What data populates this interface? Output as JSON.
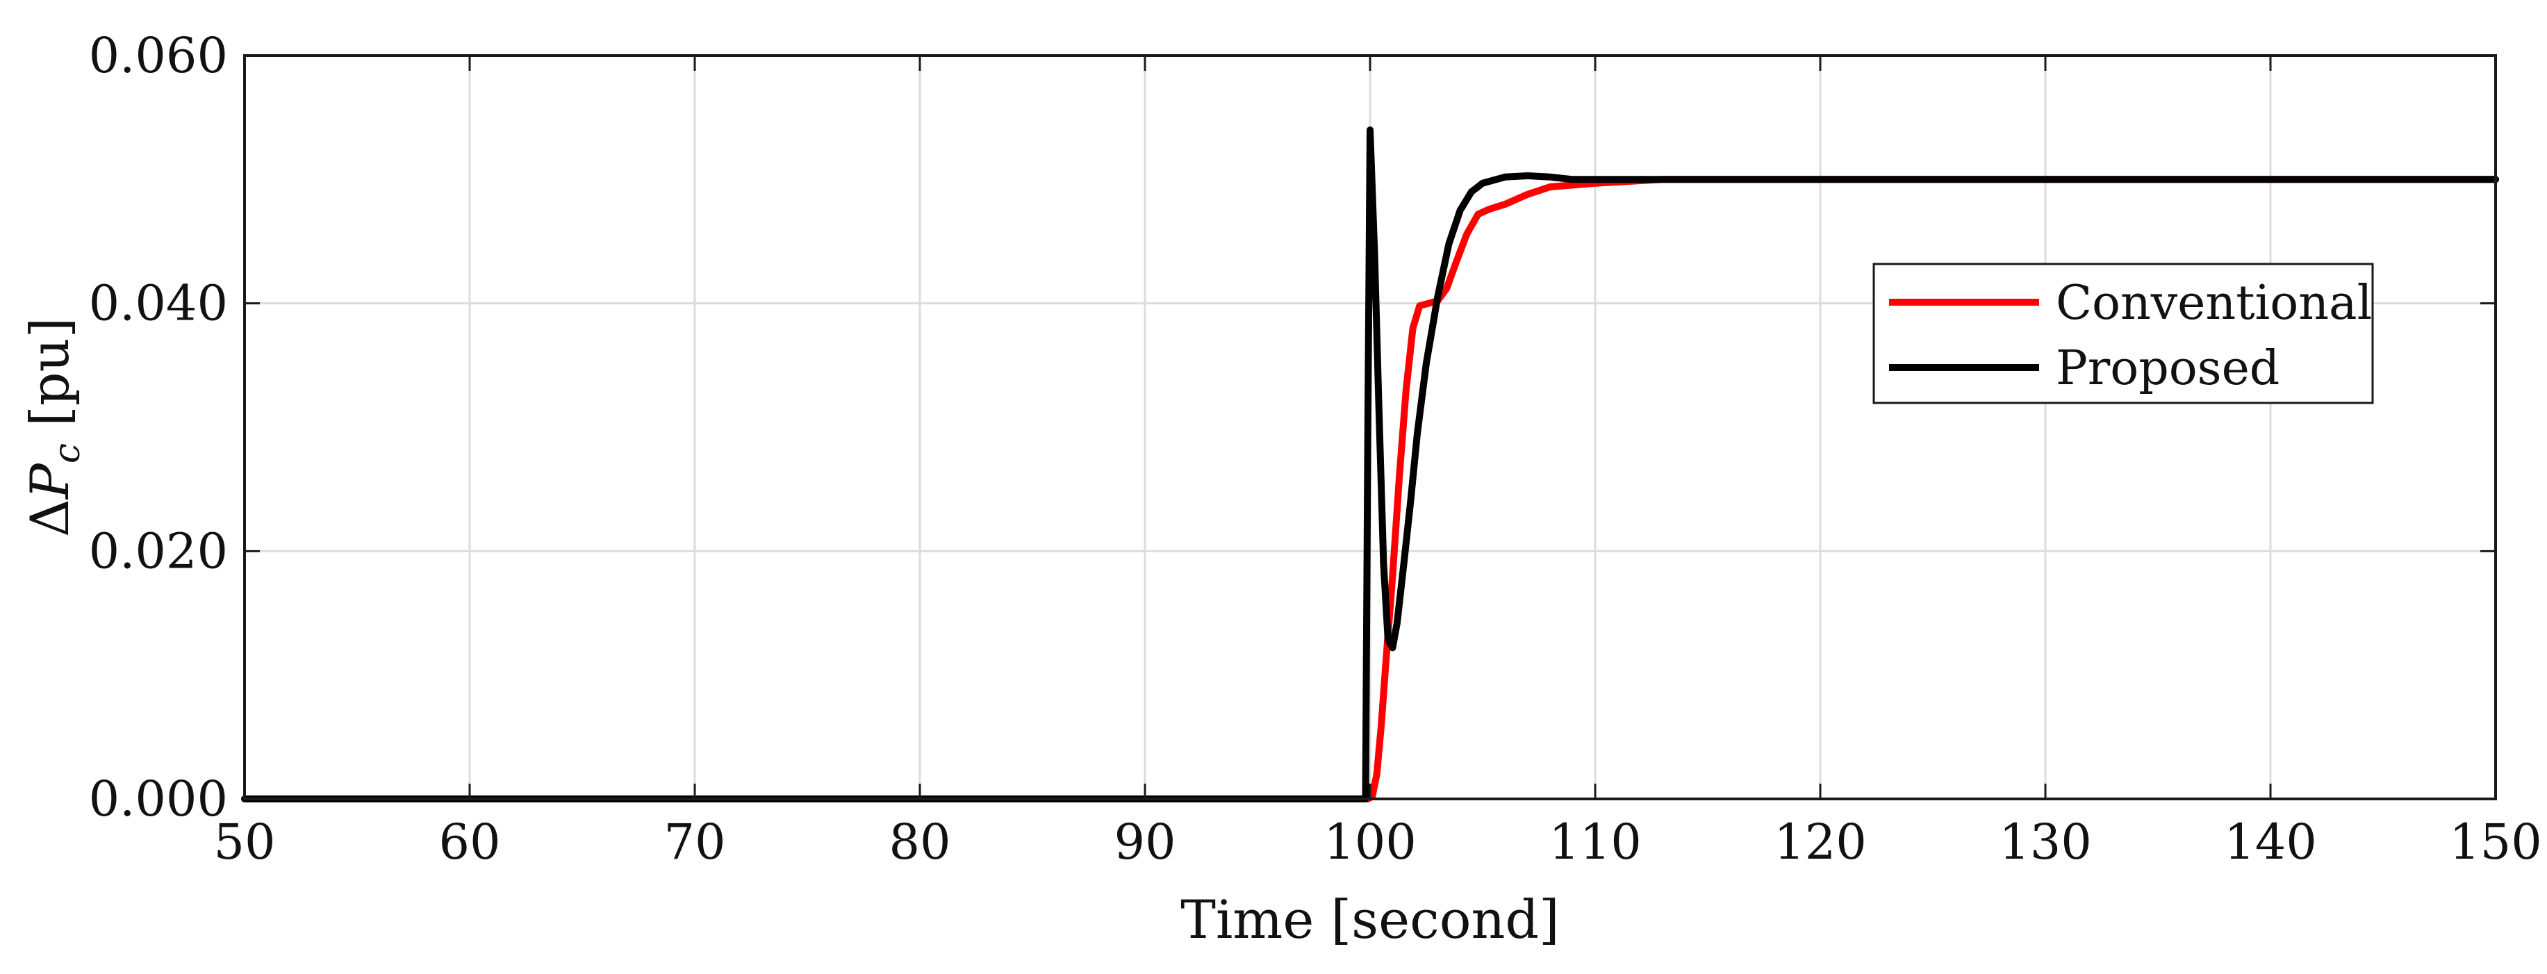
{
  "chart_data": {
    "type": "line",
    "xlabel": "Time [second]",
    "ylabel": "ΔP_c [pu]",
    "xlim": [
      50,
      150
    ],
    "ylim": [
      0,
      0.06
    ],
    "x_ticks": [
      "50",
      "60",
      "70",
      "80",
      "90",
      "100",
      "110",
      "120",
      "130",
      "140",
      "150"
    ],
    "y_ticks": [
      "0.000",
      "0.020",
      "0.040",
      "0.060"
    ],
    "grid": true,
    "legend_position": "right",
    "series": [
      {
        "name": "Conventional",
        "color": "#ff0000",
        "x": [
          50,
          99.9,
          100.1,
          100.3,
          100.5,
          100.7,
          101.0,
          101.3,
          101.6,
          101.9,
          102.2,
          102.6,
          103.0,
          103.4,
          103.8,
          104.3,
          104.8,
          105.3,
          106.0,
          107.0,
          108.0,
          110.0,
          113.0,
          150
        ],
        "values": [
          0,
          0,
          0.0002,
          0.002,
          0.006,
          0.011,
          0.018,
          0.026,
          0.033,
          0.038,
          0.0398,
          0.04,
          0.0402,
          0.0412,
          0.0432,
          0.0456,
          0.0472,
          0.0476,
          0.048,
          0.0488,
          0.0494,
          0.0497,
          0.05,
          0.05
        ]
      },
      {
        "name": "Proposed",
        "color": "#000000",
        "x": [
          50,
          99.8,
          99.9,
          100.0,
          100.2,
          100.4,
          100.6,
          100.8,
          101.0,
          101.2,
          101.5,
          101.8,
          102.1,
          102.5,
          103.0,
          103.5,
          104.0,
          104.5,
          105.0,
          106.0,
          107.0,
          108.0,
          109.0,
          150
        ],
        "values": [
          0,
          0,
          0.03,
          0.054,
          0.044,
          0.031,
          0.019,
          0.0128,
          0.0122,
          0.0142,
          0.019,
          0.024,
          0.0295,
          0.0352,
          0.0405,
          0.0448,
          0.0475,
          0.049,
          0.0497,
          0.0502,
          0.0503,
          0.0502,
          0.05,
          0.05
        ]
      }
    ]
  }
}
